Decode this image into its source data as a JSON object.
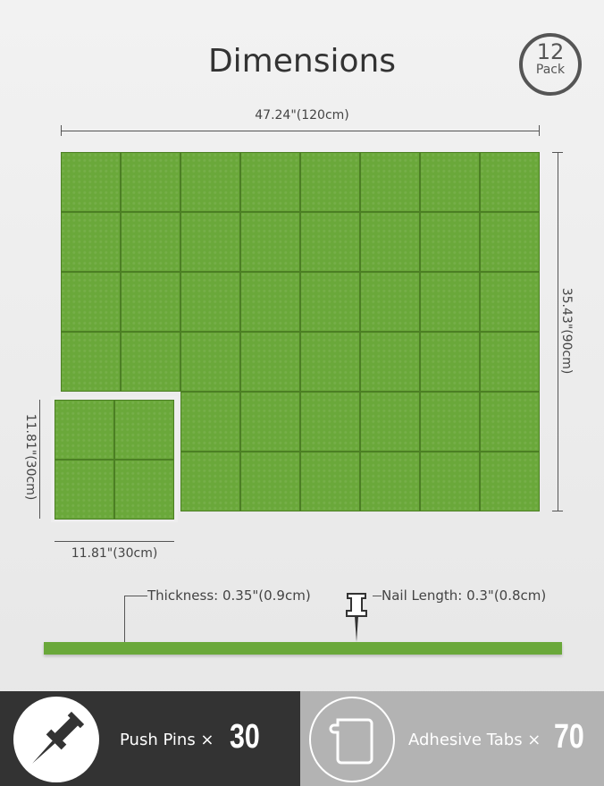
{
  "title": "Dimensions",
  "badge": {
    "count": "12",
    "unit": "Pack"
  },
  "dimensions": {
    "width": "47.24\"(120cm)",
    "height": "35.43\"(90cm)",
    "tile_height": "11.81\"(30cm)",
    "tile_width": "11.81\"(30cm)",
    "thickness": "Thickness: 0.35\"(0.9cm)",
    "nail_length": "Nail Length: 0.3\"(0.8cm)"
  },
  "accessories": {
    "pins": {
      "label": "Push Pins ×",
      "count": "30",
      "icon": "push-pin-icon"
    },
    "tabs": {
      "label": "Adhesive Tabs ×",
      "count": "70",
      "icon": "adhesive-tab-icon"
    }
  },
  "colors": {
    "felt": "#6aa83a",
    "dark_band": "#333333",
    "light_band": "#b3b3b3"
  }
}
